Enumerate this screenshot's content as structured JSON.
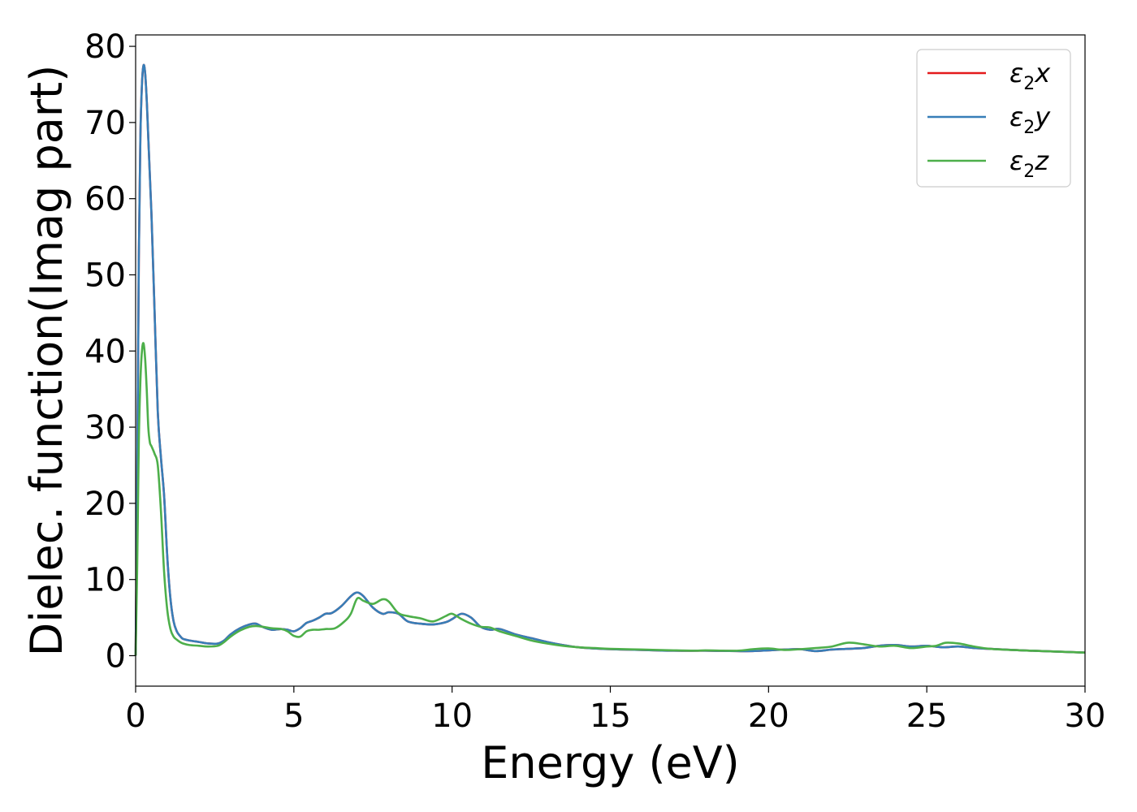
{
  "chart_data": {
    "type": "line",
    "xlabel": "Energy (eV)",
    "ylabel": "Dielec. function(Imag part)",
    "xlim": [
      0,
      30
    ],
    "ylim": [
      -4,
      81.5
    ],
    "xticks": [
      "0",
      "5",
      "10",
      "15",
      "20",
      "25",
      "30"
    ],
    "yticks": [
      "0",
      "10",
      "20",
      "30",
      "40",
      "50",
      "60",
      "70",
      "80"
    ],
    "grid": false,
    "legend_position": "top-right",
    "series": [
      {
        "name": "ε2x",
        "legend": {
          "base": "ε",
          "sub": "2",
          "comp": "x"
        },
        "color": "#e41a1c",
        "x": [
          0,
          0.05,
          0.1,
          0.15,
          0.2,
          0.25,
          0.3,
          0.35,
          0.4,
          0.5,
          0.6,
          0.7,
          0.8,
          0.9,
          1.0,
          1.1,
          1.2,
          1.3,
          1.4,
          1.5,
          1.7,
          2.0,
          2.3,
          2.6,
          2.8,
          3.0,
          3.3,
          3.6,
          3.8,
          4.0,
          4.3,
          4.6,
          4.8,
          5.0,
          5.2,
          5.4,
          5.6,
          5.8,
          6.0,
          6.2,
          6.5,
          6.8,
          7.0,
          7.2,
          7.5,
          7.8,
          8.0,
          8.3,
          8.6,
          9.0,
          9.4,
          9.8,
          10.0,
          10.3,
          10.6,
          10.9,
          11.2,
          11.5,
          12.0,
          12.5,
          13.0,
          13.5,
          14.0,
          14.5,
          15.0,
          16.0,
          17.0,
          18.0,
          19.0,
          19.5,
          20.0,
          20.5,
          21.0,
          21.5,
          22.0,
          22.5,
          23.0,
          23.5,
          24.0,
          24.5,
          25.0,
          25.5,
          26.0,
          26.5,
          27.0,
          28.0,
          29.0,
          30.0
        ],
        "values": [
          0,
          22,
          52,
          68,
          75,
          77.5,
          76.5,
          73,
          68,
          58,
          45,
          32,
          26,
          21,
          13,
          7.5,
          4.5,
          3.2,
          2.6,
          2.2,
          2.0,
          1.8,
          1.6,
          1.6,
          2.0,
          2.8,
          3.6,
          4.1,
          4.2,
          3.8,
          3.4,
          3.5,
          3.4,
          3.2,
          3.6,
          4.3,
          4.6,
          5.0,
          5.5,
          5.6,
          6.5,
          7.8,
          8.3,
          7.8,
          6.3,
          5.5,
          5.7,
          5.5,
          4.5,
          4.2,
          4.1,
          4.4,
          4.8,
          5.5,
          5.0,
          3.8,
          3.4,
          3.5,
          2.8,
          2.3,
          1.8,
          1.4,
          1.1,
          0.95,
          0.85,
          0.75,
          0.65,
          0.65,
          0.6,
          0.6,
          0.7,
          0.8,
          0.85,
          0.6,
          0.8,
          0.9,
          1.0,
          1.3,
          1.4,
          1.2,
          1.3,
          1.1,
          1.2,
          1.0,
          0.9,
          0.7,
          0.55,
          0.4
        ]
      },
      {
        "name": "ε2y",
        "legend": {
          "base": "ε",
          "sub": "2",
          "comp": "y"
        },
        "color": "#377eb8",
        "x": [
          0,
          0.05,
          0.1,
          0.15,
          0.2,
          0.25,
          0.3,
          0.35,
          0.4,
          0.5,
          0.6,
          0.7,
          0.8,
          0.9,
          1.0,
          1.1,
          1.2,
          1.3,
          1.4,
          1.5,
          1.7,
          2.0,
          2.3,
          2.6,
          2.8,
          3.0,
          3.3,
          3.6,
          3.8,
          4.0,
          4.3,
          4.6,
          4.8,
          5.0,
          5.2,
          5.4,
          5.6,
          5.8,
          6.0,
          6.2,
          6.5,
          6.8,
          7.0,
          7.2,
          7.5,
          7.8,
          8.0,
          8.3,
          8.6,
          9.0,
          9.4,
          9.8,
          10.0,
          10.3,
          10.6,
          10.9,
          11.2,
          11.5,
          12.0,
          12.5,
          13.0,
          13.5,
          14.0,
          14.5,
          15.0,
          16.0,
          17.0,
          18.0,
          19.0,
          19.5,
          20.0,
          20.5,
          21.0,
          21.5,
          22.0,
          22.5,
          23.0,
          23.5,
          24.0,
          24.5,
          25.0,
          25.5,
          26.0,
          26.5,
          27.0,
          28.0,
          29.0,
          30.0
        ],
        "values": [
          0,
          22,
          52,
          68,
          75,
          77.5,
          76.5,
          73,
          68,
          58,
          45,
          32,
          26,
          21,
          13,
          7.5,
          4.5,
          3.2,
          2.6,
          2.2,
          2.0,
          1.8,
          1.6,
          1.6,
          2.0,
          2.8,
          3.6,
          4.1,
          4.2,
          3.8,
          3.4,
          3.5,
          3.4,
          3.2,
          3.6,
          4.3,
          4.6,
          5.0,
          5.5,
          5.6,
          6.5,
          7.8,
          8.3,
          7.8,
          6.3,
          5.5,
          5.7,
          5.5,
          4.5,
          4.2,
          4.1,
          4.4,
          4.8,
          5.5,
          5.0,
          3.8,
          3.4,
          3.5,
          2.8,
          2.3,
          1.8,
          1.4,
          1.1,
          0.95,
          0.85,
          0.75,
          0.65,
          0.65,
          0.6,
          0.6,
          0.7,
          0.8,
          0.85,
          0.6,
          0.8,
          0.9,
          1.0,
          1.3,
          1.4,
          1.2,
          1.3,
          1.1,
          1.2,
          1.0,
          0.9,
          0.7,
          0.55,
          0.4
        ]
      },
      {
        "name": "ε2z",
        "legend": {
          "base": "ε",
          "sub": "2",
          "comp": "z"
        },
        "color": "#4daf4a",
        "x": [
          0,
          0.05,
          0.1,
          0.15,
          0.2,
          0.25,
          0.3,
          0.35,
          0.4,
          0.45,
          0.5,
          0.6,
          0.7,
          0.8,
          0.9,
          1.0,
          1.1,
          1.2,
          1.3,
          1.4,
          1.5,
          1.7,
          2.0,
          2.3,
          2.6,
          2.8,
          3.0,
          3.3,
          3.6,
          3.8,
          4.0,
          4.3,
          4.6,
          4.8,
          5.0,
          5.2,
          5.4,
          5.6,
          5.8,
          6.0,
          6.3,
          6.6,
          6.8,
          7.0,
          7.2,
          7.5,
          7.8,
          8.0,
          8.3,
          8.6,
          9.0,
          9.4,
          9.8,
          10.0,
          10.3,
          10.6,
          10.9,
          11.2,
          11.5,
          12.0,
          12.5,
          13.0,
          13.5,
          14.0,
          14.5,
          15.0,
          16.0,
          17.0,
          17.7,
          18.0,
          19.0,
          19.5,
          20.0,
          20.5,
          21.0,
          21.5,
          22.0,
          22.5,
          23.0,
          23.5,
          24.0,
          24.5,
          25.0,
          25.3,
          25.6,
          26.0,
          26.5,
          27.0,
          28.0,
          29.0,
          30.0
        ],
        "values": [
          0,
          12,
          28,
          36,
          40,
          41,
          39,
          35,
          30,
          28,
          27.5,
          26.5,
          25,
          19,
          11,
          6,
          3.5,
          2.5,
          2.1,
          1.8,
          1.6,
          1.4,
          1.3,
          1.2,
          1.3,
          1.8,
          2.5,
          3.3,
          3.8,
          3.9,
          3.8,
          3.6,
          3.5,
          3.2,
          2.6,
          2.5,
          3.2,
          3.4,
          3.4,
          3.5,
          3.6,
          4.5,
          5.5,
          7.5,
          7.2,
          6.8,
          7.4,
          7.1,
          5.6,
          5.2,
          4.9,
          4.5,
          5.2,
          5.5,
          4.8,
          4.2,
          3.8,
          3.7,
          3.2,
          2.6,
          2.0,
          1.6,
          1.3,
          1.1,
          1.0,
          0.9,
          0.8,
          0.7,
          0.65,
          0.7,
          0.65,
          0.85,
          0.95,
          0.75,
          0.85,
          1.0,
          1.2,
          1.7,
          1.5,
          1.2,
          1.3,
          1.0,
          1.2,
          1.3,
          1.7,
          1.6,
          1.2,
          0.9,
          0.7,
          0.55,
          0.4
        ]
      }
    ]
  }
}
